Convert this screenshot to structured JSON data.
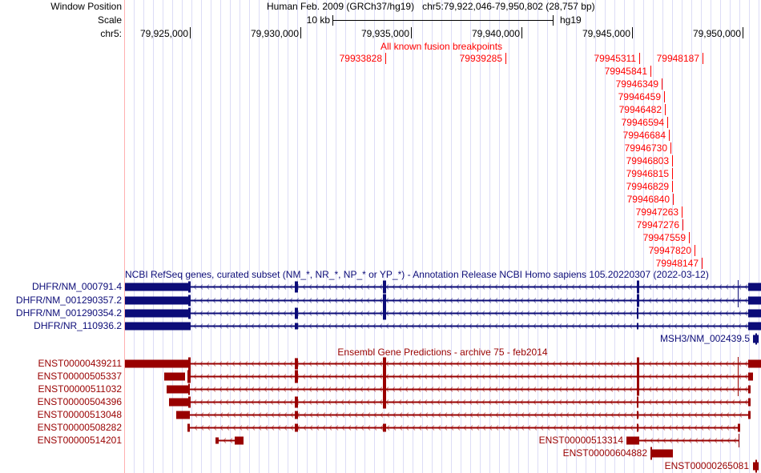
{
  "header": {
    "window_position_label": "Window Position",
    "scale_label": "Scale",
    "chrom_label": "chr5:",
    "assembly": "Human Feb. 2009 (GRCh37/hg19)",
    "position": "chr5:79,922,046-79,950,802 (28,757 bp)",
    "scale_text": "10 kb",
    "db": "hg19",
    "ticks": [
      "79,925,000",
      "79,930,000",
      "79,935,000",
      "79,940,000",
      "79,945,000",
      "79,950,000"
    ]
  },
  "fusion_track": {
    "title": "All known fusion breakpoints",
    "breakpoints": [
      [
        "79933828",
        "79939285",
        "79945311",
        "79948187"
      ],
      [
        "79945841"
      ],
      [
        "79946349"
      ],
      [
        "79946459"
      ],
      [
        "79946482"
      ],
      [
        "79946594"
      ],
      [
        "79946684"
      ],
      [
        "79946730"
      ],
      [
        "79946803"
      ],
      [
        "79946815"
      ],
      [
        "79946829"
      ],
      [
        "79946840"
      ],
      [
        "79947263"
      ],
      [
        "79947276"
      ],
      [
        "79947559"
      ],
      [
        "79947820"
      ],
      [
        "79948147"
      ]
    ]
  },
  "refseq_track": {
    "title": "NCBI RefSeq genes, curated subset (NM_*, NR_*, NP_* or YP_*) - Annotation Release NCBI Homo sapiens 105.20220307 (2022-03-12)",
    "genes": [
      "DHFR/NM_000791.4",
      "DHFR/NM_001290357.2",
      "DHFR/NM_001290354.2",
      "DHFR/NR_110936.2"
    ],
    "extra_gene": "MSH3/NM_002439.5"
  },
  "ensembl_track": {
    "title": "Ensembl Gene Predictions - archive 75 - feb2014",
    "genes": [
      "ENST00000439211",
      "ENST00000505337",
      "ENST00000511032",
      "ENST00000504396",
      "ENST00000513048",
      "ENST00000508282",
      "ENST00000514201"
    ],
    "inline_genes": [
      "ENST00000513314",
      "ENST00000604882",
      "ENST00000265081"
    ]
  },
  "colors": {
    "refseq": "#0c0c78",
    "ensembl": "#990000",
    "fusion": "#ff0000",
    "grid": "#dcdcf6"
  }
}
